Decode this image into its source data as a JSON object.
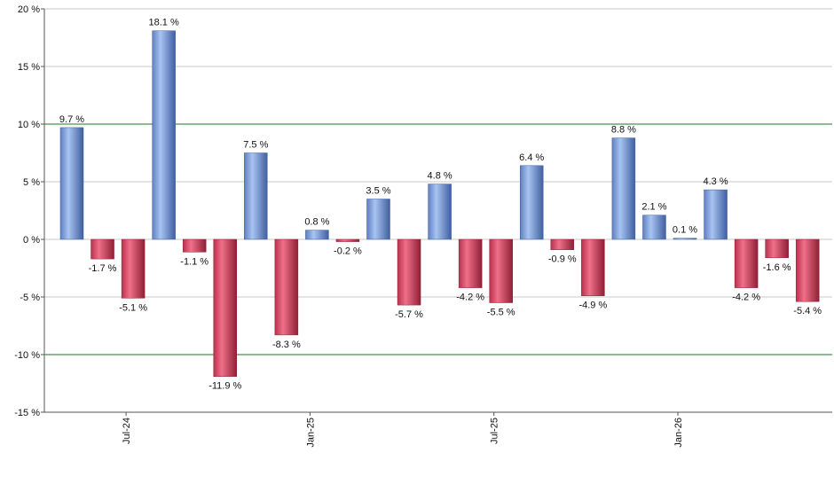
{
  "chart_data": {
    "type": "bar",
    "title": "",
    "xlabel": "",
    "ylabel": "",
    "ylim": [
      -15,
      20
    ],
    "y_ticks": [
      20,
      15,
      10,
      5,
      0,
      -5,
      -10,
      -15
    ],
    "y_tick_suffix": " %",
    "x_tick_labels": [
      {
        "label": "Jul-24",
        "index": 2
      },
      {
        "label": "Jan-25",
        "index": 8
      },
      {
        "label": "Jul-25",
        "index": 14
      },
      {
        "label": "Jan-26",
        "index": 20
      }
    ],
    "reference_lines": [
      10,
      -10
    ],
    "grid": true,
    "values": [
      9.7,
      -1.7,
      -5.1,
      18.1,
      -1.1,
      -11.9,
      7.5,
      -8.3,
      0.8,
      -0.2,
      3.5,
      -5.7,
      4.8,
      -4.2,
      -5.5,
      6.4,
      -0.9,
      -4.9,
      8.8,
      2.1,
      0.1,
      4.3,
      -4.2,
      -1.6,
      -5.4
    ],
    "labels": [
      "9.7 %",
      "-1.7 %",
      "-5.1 %",
      "18.1 %",
      "-1.1 %",
      "-11.9 %",
      "7.5 %",
      "-8.3 %",
      "0.8 %",
      "-0.2 %",
      "3.5 %",
      "-5.7 %",
      "4.8 %",
      "-4.2 %",
      "-5.5 %",
      "6.4 %",
      "-0.9 %",
      "-4.9 %",
      "8.8 %",
      "2.1 %",
      "0.1 %",
      "4.3 %",
      "-4.2 %",
      "-1.6 %",
      "-5.4 %"
    ],
    "colors": {
      "positive": "#7fa3e0",
      "positive_dark": "#3f5f9f",
      "negative": "#d84a66",
      "negative_dark": "#8f1f36",
      "grid": "#c8c8c8",
      "reference_line": "#1f7a1f",
      "axis": "#555555"
    }
  }
}
